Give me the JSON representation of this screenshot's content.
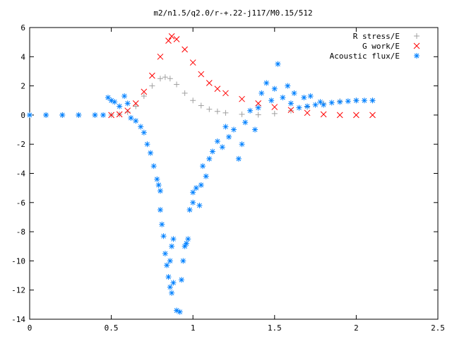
{
  "chart_data": {
    "type": "scatter",
    "title": "m2/n1.5/q2.0/r-+.22-j117/M0.15/512",
    "xlabel": "",
    "ylabel": "",
    "xlim": [
      0,
      2.5
    ],
    "ylim": [
      -14,
      6
    ],
    "xticks": [
      0,
      0.5,
      1,
      1.5,
      2,
      2.5
    ],
    "yticks": [
      -14,
      -12,
      -10,
      -8,
      -6,
      -4,
      -2,
      0,
      2,
      4,
      6
    ],
    "grid": false,
    "legend_position": "top-right",
    "series": [
      {
        "name": "R stress/E",
        "marker": "+",
        "color": "#a0a0a0",
        "points": [
          [
            0.0,
            0.0
          ],
          [
            0.1,
            0.0
          ],
          [
            0.2,
            0.0
          ],
          [
            0.3,
            0.0
          ],
          [
            0.4,
            0.0
          ],
          [
            0.5,
            0.0
          ],
          [
            0.55,
            0.05
          ],
          [
            0.6,
            0.2
          ],
          [
            0.65,
            0.6
          ],
          [
            0.7,
            1.3
          ],
          [
            0.75,
            2.0
          ],
          [
            0.8,
            2.5
          ],
          [
            0.83,
            2.6
          ],
          [
            0.86,
            2.5
          ],
          [
            0.9,
            2.1
          ],
          [
            0.95,
            1.5
          ],
          [
            1.0,
            1.0
          ],
          [
            1.05,
            0.65
          ],
          [
            1.1,
            0.4
          ],
          [
            1.15,
            0.25
          ],
          [
            1.2,
            0.15
          ],
          [
            1.3,
            0.05
          ],
          [
            1.4,
            0.02
          ],
          [
            1.5,
            0.1
          ],
          [
            1.6,
            0.3
          ],
          [
            1.7,
            0.55
          ],
          [
            1.8,
            0.8
          ],
          [
            1.9,
            0.95
          ],
          [
            2.0,
            1.0
          ],
          [
            2.1,
            1.0
          ]
        ]
      },
      {
        "name": "G work/E",
        "marker": "x",
        "color": "#ff0000",
        "points": [
          [
            0.5,
            0.0
          ],
          [
            0.55,
            0.05
          ],
          [
            0.6,
            0.3
          ],
          [
            0.65,
            0.8
          ],
          [
            0.7,
            1.6
          ],
          [
            0.75,
            2.7
          ],
          [
            0.8,
            4.0
          ],
          [
            0.85,
            5.1
          ],
          [
            0.87,
            5.4
          ],
          [
            0.9,
            5.2
          ],
          [
            0.95,
            4.5
          ],
          [
            1.0,
            3.6
          ],
          [
            1.05,
            2.8
          ],
          [
            1.1,
            2.2
          ],
          [
            1.15,
            1.8
          ],
          [
            1.2,
            1.5
          ],
          [
            1.3,
            1.1
          ],
          [
            1.4,
            0.8
          ],
          [
            1.5,
            0.55
          ],
          [
            1.6,
            0.35
          ],
          [
            1.7,
            0.15
          ],
          [
            1.8,
            0.05
          ],
          [
            1.9,
            0.0
          ],
          [
            2.0,
            0.0
          ],
          [
            2.1,
            0.0
          ]
        ]
      },
      {
        "name": "Acoustic flux/E",
        "marker": "*",
        "color": "#0080ff",
        "points": [
          [
            0.0,
            0.0
          ],
          [
            0.1,
            0.0
          ],
          [
            0.2,
            0.0
          ],
          [
            0.3,
            0.0
          ],
          [
            0.4,
            0.0
          ],
          [
            0.45,
            0.0
          ],
          [
            0.48,
            1.2
          ],
          [
            0.5,
            1.0
          ],
          [
            0.52,
            0.9
          ],
          [
            0.55,
            0.6
          ],
          [
            0.58,
            1.3
          ],
          [
            0.6,
            0.8
          ],
          [
            0.62,
            -0.2
          ],
          [
            0.65,
            -0.4
          ],
          [
            0.68,
            -0.8
          ],
          [
            0.7,
            -1.2
          ],
          [
            0.72,
            -2.0
          ],
          [
            0.74,
            -2.6
          ],
          [
            0.76,
            -3.5
          ],
          [
            0.78,
            -4.4
          ],
          [
            0.79,
            -4.8
          ],
          [
            0.8,
            -5.2
          ],
          [
            0.8,
            -6.5
          ],
          [
            0.81,
            -7.5
          ],
          [
            0.82,
            -8.3
          ],
          [
            0.83,
            -9.5
          ],
          [
            0.84,
            -10.3
          ],
          [
            0.85,
            -11.1
          ],
          [
            0.86,
            -11.8
          ],
          [
            0.87,
            -12.2
          ],
          [
            0.88,
            -11.5
          ],
          [
            0.86,
            -10.0
          ],
          [
            0.87,
            -9.0
          ],
          [
            0.88,
            -8.5
          ],
          [
            0.9,
            -13.4
          ],
          [
            0.92,
            -13.5
          ],
          [
            0.93,
            -11.3
          ],
          [
            0.94,
            -10.0
          ],
          [
            0.95,
            -9.0
          ],
          [
            0.96,
            -8.8
          ],
          [
            0.97,
            -8.5
          ],
          [
            0.98,
            -6.5
          ],
          [
            1.0,
            -6.0
          ],
          [
            1.0,
            -5.3
          ],
          [
            1.02,
            -5.0
          ],
          [
            1.04,
            -6.2
          ],
          [
            1.05,
            -4.8
          ],
          [
            1.06,
            -3.5
          ],
          [
            1.08,
            -4.2
          ],
          [
            1.1,
            -3.0
          ],
          [
            1.12,
            -2.5
          ],
          [
            1.15,
            -1.8
          ],
          [
            1.18,
            -2.2
          ],
          [
            1.2,
            -0.8
          ],
          [
            1.22,
            -1.5
          ],
          [
            1.25,
            -1.0
          ],
          [
            1.28,
            -3.0
          ],
          [
            1.3,
            -2.0
          ],
          [
            1.32,
            -0.5
          ],
          [
            1.35,
            0.3
          ],
          [
            1.38,
            -1.0
          ],
          [
            1.4,
            0.5
          ],
          [
            1.42,
            1.5
          ],
          [
            1.45,
            2.2
          ],
          [
            1.48,
            1.0
          ],
          [
            1.5,
            1.8
          ],
          [
            1.52,
            3.5
          ],
          [
            1.55,
            1.2
          ],
          [
            1.58,
            2.0
          ],
          [
            1.6,
            0.8
          ],
          [
            1.62,
            1.5
          ],
          [
            1.65,
            0.5
          ],
          [
            1.68,
            1.2
          ],
          [
            1.7,
            0.6
          ],
          [
            1.72,
            1.3
          ],
          [
            1.75,
            0.7
          ],
          [
            1.78,
            0.9
          ],
          [
            1.8,
            0.7
          ],
          [
            1.85,
            0.85
          ],
          [
            1.9,
            0.9
          ],
          [
            1.95,
            0.95
          ],
          [
            2.0,
            1.0
          ],
          [
            2.05,
            1.0
          ],
          [
            2.1,
            1.0
          ]
        ]
      }
    ]
  }
}
